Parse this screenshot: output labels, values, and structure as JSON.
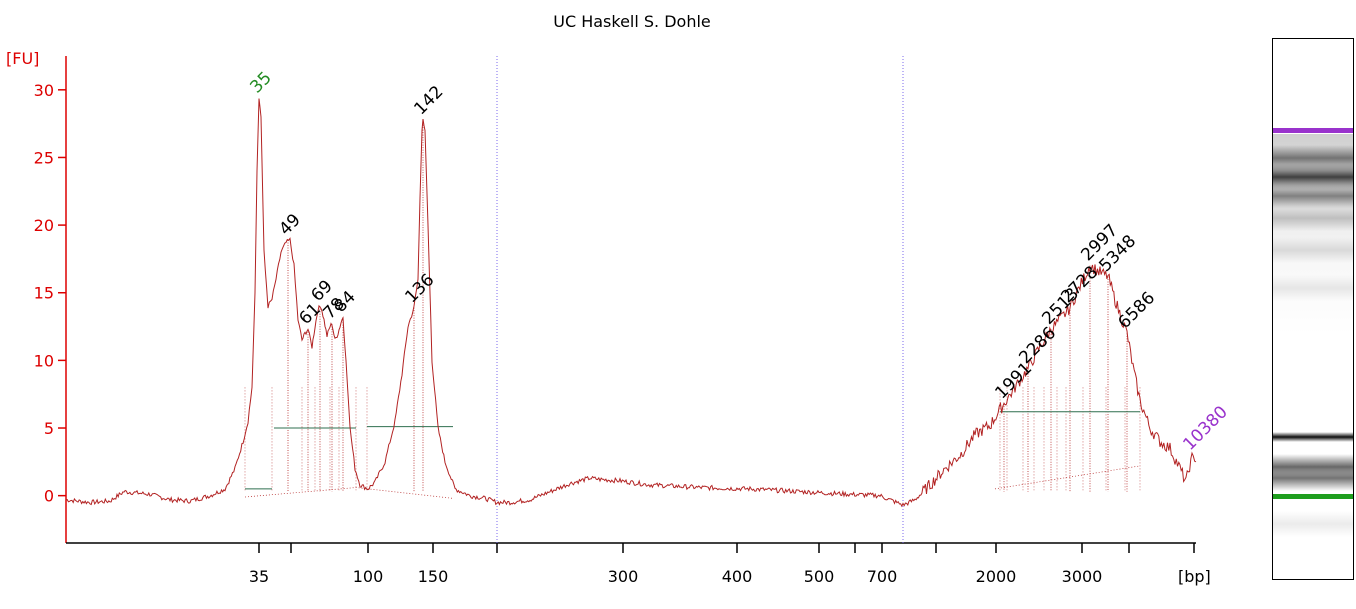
{
  "chart_data": {
    "type": "line",
    "title": "UC Haskell S. Dohle",
    "ylabel": "[FU]",
    "xlabel": "[bp]",
    "ylim": [
      -3.5,
      32.5
    ],
    "y_ticks": [
      0,
      5,
      10,
      15,
      20,
      25,
      30
    ],
    "x_ticks": [
      "35",
      "100",
      "150",
      "300",
      "400",
      "500",
      "700",
      "2000",
      "3000"
    ],
    "grid": false,
    "colors": {
      "trace": "#b22222",
      "axis": "#dd0000",
      "marker_label": "#228b22",
      "upper_marker": "#9932cc",
      "baseline": "#2f6f4f",
      "ruler": "#7b68ee"
    },
    "peaks": [
      {
        "label": "35",
        "x_pos": 259,
        "height": 29.4,
        "color": "#228b22"
      },
      {
        "label": "49",
        "x_pos": 288,
        "height": 18.9,
        "color": "#000000"
      },
      {
        "label": "61",
        "x_pos": 308,
        "height": 12.3,
        "color": "#000000"
      },
      {
        "label": "69",
        "x_pos": 320,
        "height": 14.0,
        "color": "#000000"
      },
      {
        "label": "78",
        "x_pos": 332,
        "height": 12.7,
        "color": "#000000"
      },
      {
        "label": "84",
        "x_pos": 343,
        "height": 13.2,
        "color": "#000000"
      },
      {
        "label": "136",
        "x_pos": 414,
        "height": 13.9,
        "color": "#000000"
      },
      {
        "label": "142",
        "x_pos": 423,
        "height": 27.8,
        "color": "#000000"
      },
      {
        "label": "1991",
        "x_pos": 1004,
        "height": 6.8,
        "color": "#000000"
      },
      {
        "label": "2286",
        "x_pos": 1028,
        "height": 9.4,
        "color": "#000000"
      },
      {
        "label": "2513",
        "x_pos": 1051,
        "height": 12.3,
        "color": "#000000"
      },
      {
        "label": "2728",
        "x_pos": 1070,
        "height": 13.9,
        "color": "#000000"
      },
      {
        "label": "2997",
        "x_pos": 1090,
        "height": 17.0,
        "color": "#000000"
      },
      {
        "label": "5348",
        "x_pos": 1108,
        "height": 16.2,
        "color": "#000000"
      },
      {
        "label": "6586",
        "x_pos": 1127,
        "height": 12.0,
        "color": "#000000"
      },
      {
        "label": "10380",
        "x_pos": 1192,
        "height": 3.0,
        "color": "#9932cc"
      }
    ],
    "series": [
      {
        "points": [
          [
            66,
            -0.3
          ],
          [
            90,
            -0.5
          ],
          [
            110,
            -0.4
          ],
          [
            124,
            0.3
          ],
          [
            150,
            0.1
          ],
          [
            170,
            -0.3
          ],
          [
            190,
            -0.4
          ],
          [
            210,
            0.0
          ],
          [
            225,
            0.5
          ],
          [
            235,
            2.0
          ],
          [
            243,
            4.0
          ],
          [
            248,
            5.5
          ],
          [
            252,
            8.0
          ],
          [
            255,
            15.0
          ],
          [
            257,
            24.0
          ],
          [
            259,
            29.4
          ],
          [
            261,
            28.0
          ],
          [
            264,
            18.0
          ],
          [
            268,
            14.0
          ],
          [
            272,
            14.5
          ],
          [
            276,
            16.0
          ],
          [
            281,
            18.0
          ],
          [
            286,
            18.7
          ],
          [
            290,
            18.9
          ],
          [
            294,
            17.0
          ],
          [
            298,
            13.0
          ],
          [
            302,
            11.5
          ],
          [
            305,
            12.0
          ],
          [
            308,
            12.3
          ],
          [
            312,
            11.0
          ],
          [
            315,
            12.5
          ],
          [
            318,
            13.8
          ],
          [
            321,
            14.0
          ],
          [
            324,
            13.0
          ],
          [
            327,
            11.8
          ],
          [
            330,
            12.5
          ],
          [
            332,
            12.7
          ],
          [
            335,
            11.5
          ],
          [
            338,
            12.0
          ],
          [
            341,
            12.8
          ],
          [
            343,
            13.2
          ],
          [
            346,
            10.0
          ],
          [
            350,
            5.0
          ],
          [
            355,
            2.0
          ],
          [
            360,
            0.8
          ],
          [
            368,
            0.5
          ],
          [
            375,
            1.0
          ],
          [
            385,
            2.5
          ],
          [
            395,
            5.5
          ],
          [
            402,
            9.0
          ],
          [
            408,
            12.5
          ],
          [
            414,
            13.9
          ],
          [
            418,
            16.0
          ],
          [
            420,
            22.0
          ],
          [
            422,
            27.0
          ],
          [
            423,
            27.8
          ],
          [
            425,
            27.0
          ],
          [
            428,
            20.0
          ],
          [
            432,
            10.0
          ],
          [
            438,
            5.0
          ],
          [
            445,
            2.5
          ],
          [
            455,
            0.5
          ],
          [
            470,
            0.0
          ],
          [
            485,
            -0.2
          ],
          [
            497,
            -0.5
          ],
          [
            510,
            -0.5
          ],
          [
            530,
            -0.3
          ],
          [
            550,
            0.3
          ],
          [
            570,
            0.9
          ],
          [
            590,
            1.3
          ],
          [
            600,
            1.2
          ],
          [
            620,
            1.1
          ],
          [
            650,
            0.8
          ],
          [
            700,
            0.6
          ],
          [
            750,
            0.5
          ],
          [
            800,
            0.3
          ],
          [
            850,
            0.1
          ],
          [
            880,
            0.0
          ],
          [
            903,
            -0.7
          ],
          [
            915,
            -0.3
          ],
          [
            930,
            0.8
          ],
          [
            945,
            2.0
          ],
          [
            960,
            3.0
          ],
          [
            975,
            4.5
          ],
          [
            990,
            5.2
          ],
          [
            1004,
            6.8
          ],
          [
            1015,
            8.0
          ],
          [
            1028,
            9.4
          ],
          [
            1040,
            11.0
          ],
          [
            1051,
            12.3
          ],
          [
            1060,
            13.0
          ],
          [
            1070,
            13.9
          ],
          [
            1080,
            15.5
          ],
          [
            1090,
            17.0
          ],
          [
            1100,
            16.5
          ],
          [
            1108,
            16.2
          ],
          [
            1115,
            14.5
          ],
          [
            1122,
            13.0
          ],
          [
            1127,
            12.0
          ],
          [
            1133,
            9.5
          ],
          [
            1140,
            7.0
          ],
          [
            1150,
            5.0
          ],
          [
            1160,
            4.0
          ],
          [
            1170,
            3.5
          ],
          [
            1180,
            2.0
          ],
          [
            1186,
            1.0
          ],
          [
            1192,
            3.0
          ],
          [
            1196,
            2.5
          ]
        ]
      }
    ],
    "baselines": [
      {
        "x1": 245,
        "x2": 272,
        "y": 0.5
      },
      {
        "x1": 274,
        "x2": 356,
        "y": 5.0
      },
      {
        "x1": 367,
        "x2": 453,
        "y": 5.1
      },
      {
        "x1": 1000,
        "x2": 1140,
        "y": 6.2
      }
    ],
    "vruler_positions": [
      497,
      903
    ]
  },
  "gel": {
    "bands": [
      {
        "pos": 0.169,
        "darkness": 1.0,
        "color": "#9932cc",
        "kind": "marker"
      },
      {
        "pos": 0.22,
        "darkness": 0.55
      },
      {
        "pos": 0.255,
        "darkness": 0.75
      },
      {
        "pos": 0.29,
        "darkness": 0.5
      },
      {
        "pos": 0.33,
        "darkness": 0.25
      },
      {
        "pos": 0.39,
        "darkness": 0.15
      },
      {
        "pos": 0.46,
        "darkness": 0.1
      },
      {
        "pos": 0.735,
        "darkness": 0.95
      },
      {
        "pos": 0.79,
        "darkness": 0.6
      },
      {
        "pos": 0.81,
        "darkness": 0.55
      },
      {
        "pos": 0.845,
        "darkness": 1.0,
        "color": "#1e9e1e",
        "kind": "marker"
      },
      {
        "pos": 0.895,
        "darkness": 0.08
      }
    ]
  }
}
